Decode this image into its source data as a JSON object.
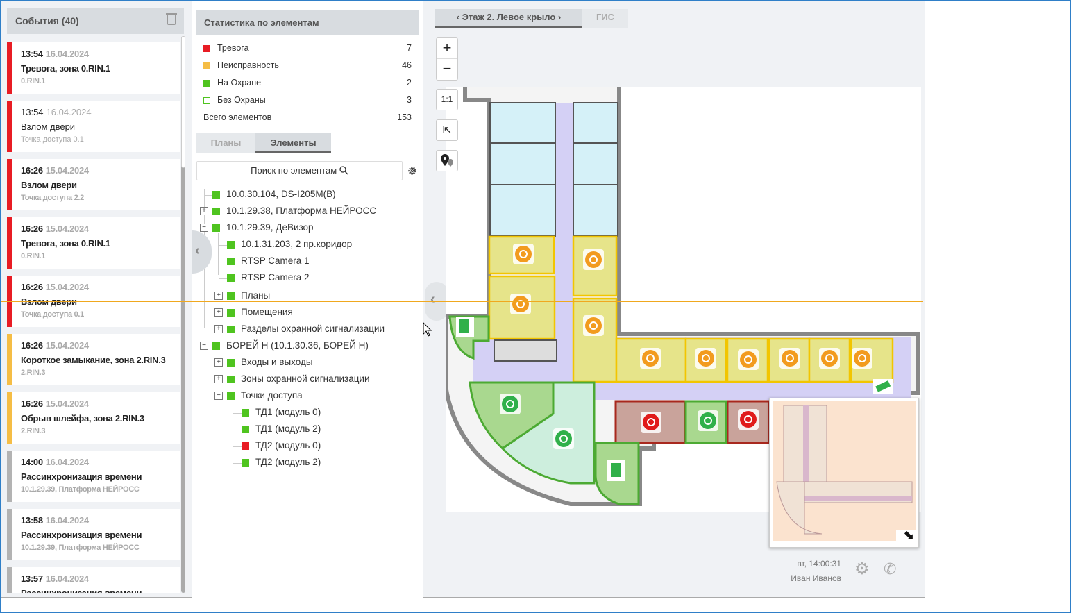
{
  "events": {
    "title": "События (40)",
    "items": [
      {
        "time": "13:54",
        "date": "16.04.2024",
        "name": "Тревога, зона 0.RIN.1",
        "source": "0.RIN.1",
        "level": "alarm",
        "bold": true
      },
      {
        "time": "13:54",
        "date": "16.04.2024",
        "name": "Взлом двери",
        "source": "Точка доступа 0.1",
        "level": "alarm",
        "bold": false
      },
      {
        "time": "16:26",
        "date": "15.04.2024",
        "name": "Взлом двери",
        "source": "Точка доступа 2.2",
        "level": "alarm",
        "bold": true
      },
      {
        "time": "16:26",
        "date": "15.04.2024",
        "name": "Тревога, зона 0.RIN.1",
        "source": "0.RIN.1",
        "level": "alarm",
        "bold": true
      },
      {
        "time": "16:26",
        "date": "15.04.2024",
        "name": "Взлом двери",
        "source": "Точка доступа 0.1",
        "level": "alarm",
        "bold": true
      },
      {
        "time": "16:26",
        "date": "15.04.2024",
        "name": "Короткое замыкание, зона 2.RIN.3",
        "source": "2.RIN.3",
        "level": "fault",
        "bold": true
      },
      {
        "time": "16:26",
        "date": "15.04.2024",
        "name": "Обрыв шлейфа, зона 2.RIN.3",
        "source": "2.RIN.3",
        "level": "fault",
        "bold": true
      },
      {
        "time": "14:00",
        "date": "16.04.2024",
        "name": "Рассинхронизация времени",
        "source": "10.1.29.39, Платформа НЕЙРОСС",
        "level": "info",
        "bold": true
      },
      {
        "time": "13:58",
        "date": "16.04.2024",
        "name": "Рассинхронизация времени",
        "source": "10.1.29.39, Платформа НЕЙРОСС",
        "level": "info",
        "bold": true
      },
      {
        "time": "13:57",
        "date": "16.04.2024",
        "name": "Рассинхронизация времени",
        "source": "",
        "level": "info",
        "bold": true
      }
    ]
  },
  "colors": {
    "alarm": "#e81c24",
    "fault": "#f5bd45",
    "info": "#b3b3b3",
    "armed": "#4fc41f"
  },
  "stats": {
    "title": "Статистика по элементам",
    "rows": [
      {
        "label": "Тревога",
        "value": "7",
        "color": "#e81c24",
        "style": "filled"
      },
      {
        "label": "Неисправность",
        "value": "46",
        "color": "#f5bd45",
        "style": "filled"
      },
      {
        "label": "На Охране",
        "value": "2",
        "color": "#4fc41f",
        "style": "filled"
      },
      {
        "label": "Без Охраны",
        "value": "3",
        "color": "#4fc41f",
        "style": "outline"
      }
    ],
    "total_label": "Всего элементов",
    "total_value": "153"
  },
  "tabs": {
    "plans": "Планы",
    "elements": "Элементы"
  },
  "search": {
    "placeholder": "Поиск по элементам"
  },
  "tree": [
    {
      "label": "10.0.30.104, DS-I205M(B)",
      "level": 0,
      "toggle": "",
      "status": "armed"
    },
    {
      "label": "10.1.29.38, Платформа НЕЙРОСС",
      "level": 0,
      "toggle": "+",
      "status": "armed"
    },
    {
      "label": "10.1.29.39, ДеВизор",
      "level": 0,
      "toggle": "−",
      "status": "armed"
    },
    {
      "label": "10.1.31.203, 2 пр.коридор",
      "level": 1,
      "toggle": "",
      "status": "armed"
    },
    {
      "label": "RTSP Camera 1",
      "level": 1,
      "toggle": "",
      "status": "armed"
    },
    {
      "label": "RTSP Camera 2",
      "level": 1,
      "toggle": "",
      "status": "armed"
    },
    {
      "label": "Планы",
      "level": 1,
      "toggle": "+",
      "status": "armed"
    },
    {
      "label": "Помещения",
      "level": 1,
      "toggle": "+",
      "status": "armed"
    },
    {
      "label": "Разделы охранной сигнализации",
      "level": 1,
      "toggle": "+",
      "status": "armed"
    },
    {
      "label": "БОРЕЙ Н (10.1.30.36, БОРЕЙ Н)",
      "level": 0,
      "toggle": "−",
      "status": "armed"
    },
    {
      "label": "Входы и выходы",
      "level": 1,
      "toggle": "+",
      "status": "armed"
    },
    {
      "label": "Зоны охранной сигнализации",
      "level": 1,
      "toggle": "+",
      "status": "armed"
    },
    {
      "label": "Точки доступа",
      "level": 1,
      "toggle": "−",
      "status": "armed"
    },
    {
      "label": "ТД1 (модуль 0)",
      "level": 2,
      "toggle": "",
      "status": "armed"
    },
    {
      "label": "ТД1 (модуль 2)",
      "level": 2,
      "toggle": "",
      "status": "armed"
    },
    {
      "label": "ТД2 (модуль 0)",
      "level": 2,
      "toggle": "",
      "status": "alarm"
    },
    {
      "label": "ТД2 (модуль 2)",
      "level": 2,
      "toggle": "",
      "status": "armed"
    }
  ],
  "map": {
    "tab_floor": "‹ Этаж 2. Левое крыло ›",
    "tab_gis": "ГИС",
    "zoom_in": "+",
    "zoom_out": "−",
    "scale_1_1": "1:1"
  },
  "footer": {
    "clock": "вт, 14:00:31",
    "user": "Иван Иванов"
  }
}
